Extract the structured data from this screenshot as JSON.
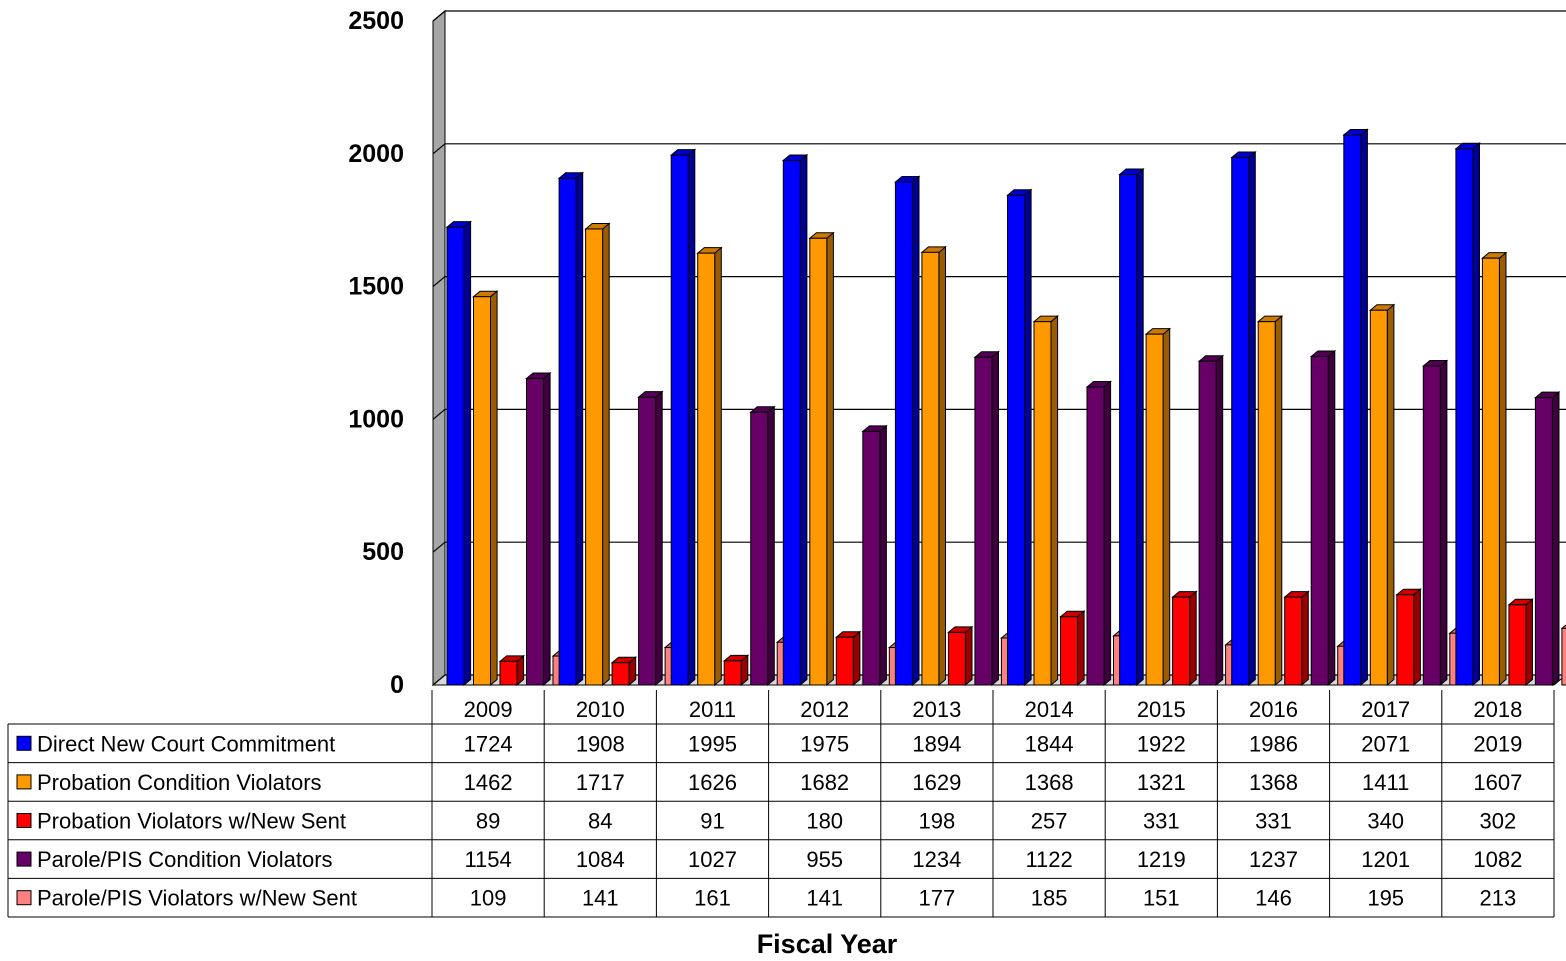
{
  "chart_data": {
    "type": "bar",
    "title": "",
    "xlabel": "Fiscal Year",
    "ylabel": "",
    "ylim": [
      0,
      2500
    ],
    "yticks": [
      0,
      500,
      1000,
      1500,
      2000,
      2500
    ],
    "grid": true,
    "legend": "data-table-below",
    "categories": [
      "2009",
      "2010",
      "2011",
      "2012",
      "2013",
      "2014",
      "2015",
      "2016",
      "2017",
      "2018"
    ],
    "series": [
      {
        "name": "Direct New Court Commitment",
        "color": "#0000ff",
        "values": [
          1724,
          1908,
          1995,
          1975,
          1894,
          1844,
          1922,
          1986,
          2071,
          2019
        ]
      },
      {
        "name": "Probation Condition Violators",
        "color": "#ff9900",
        "values": [
          1462,
          1717,
          1626,
          1682,
          1629,
          1368,
          1321,
          1368,
          1411,
          1607
        ]
      },
      {
        "name": "Probation Violators w/New Sent",
        "color": "#ff0000",
        "values": [
          89,
          84,
          91,
          180,
          198,
          257,
          331,
          331,
          340,
          302
        ]
      },
      {
        "name": "Parole/PIS Condition Violators",
        "color": "#660066",
        "values": [
          1154,
          1084,
          1027,
          955,
          1234,
          1122,
          1219,
          1237,
          1201,
          1082
        ]
      },
      {
        "name": "Parole/PIS Violators w/New Sent",
        "color": "#ff8080",
        "values": [
          109,
          141,
          161,
          141,
          177,
          185,
          151,
          146,
          195,
          213
        ]
      }
    ]
  }
}
